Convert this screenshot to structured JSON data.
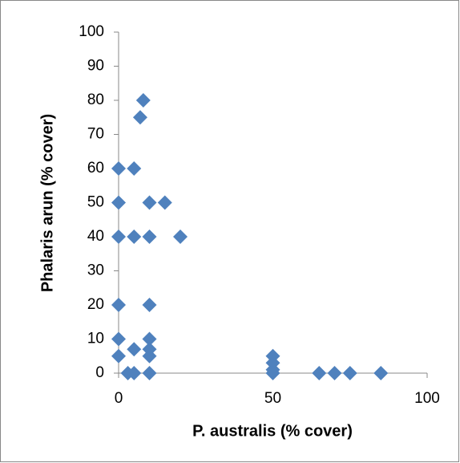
{
  "chart_data": {
    "type": "scatter",
    "x_label": "P. australis (% cover)",
    "y_label": "Phalaris arun (% cover)",
    "series": [
      {
        "color": "#4f81bd",
        "x": [
          8,
          7,
          0,
          5,
          0,
          10,
          15,
          0,
          5,
          10,
          20,
          0,
          10,
          0,
          10,
          0,
          5,
          10,
          10,
          3,
          5,
          10,
          50,
          50,
          50,
          50,
          65,
          70,
          75,
          85
        ],
        "values": [
          80,
          75,
          60,
          60,
          50,
          50,
          50,
          40,
          40,
          40,
          40,
          20,
          20,
          10,
          10,
          5,
          7,
          7,
          5,
          0,
          0,
          0,
          5,
          3,
          1,
          0,
          0,
          0,
          0,
          0
        ]
      }
    ],
    "xlim": [
      0,
      100
    ],
    "xticks": [
      0,
      50,
      100
    ],
    "ylim": [
      0,
      100
    ],
    "yticks": [
      0,
      10,
      20,
      30,
      40,
      50,
      60,
      70,
      80,
      90,
      100
    ],
    "grid": false
  }
}
